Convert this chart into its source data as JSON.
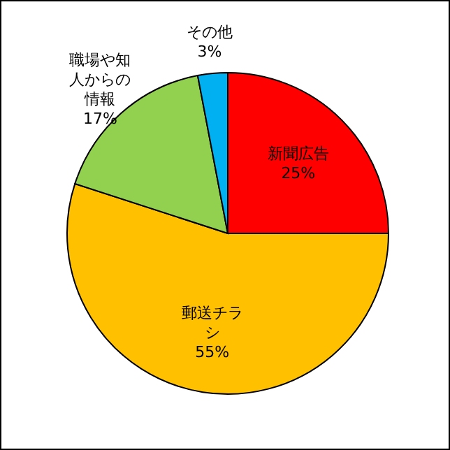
{
  "chart_data": {
    "type": "pie",
    "categories": [
      "新聞広告",
      "郵送チラシ",
      "職場や知人からの情報",
      "その他"
    ],
    "values": [
      25,
      55,
      17,
      3
    ],
    "colors": [
      "#ff0000",
      "#ffc000",
      "#92d050",
      "#00b0f0"
    ],
    "value_labels": [
      "25%",
      "55%",
      "17%",
      "3%"
    ]
  }
}
